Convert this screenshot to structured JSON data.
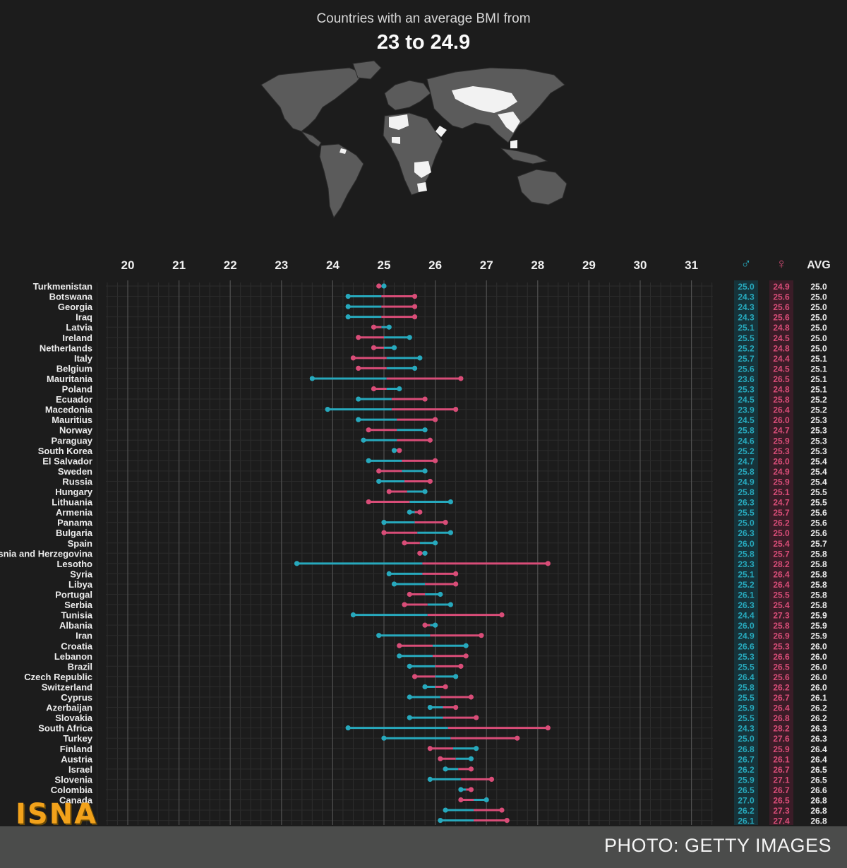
{
  "header": {
    "subtitle": "Countries with an average BMI from",
    "title": "23 to 24.9"
  },
  "colors": {
    "male": "#27a9bd",
    "female": "#d94d78",
    "background": "#1c1c1c",
    "grid": "#3a3a3a",
    "land": "#5b5b5b",
    "highlight": "#f2f2f2"
  },
  "columns": {
    "male_symbol": "♂",
    "female_symbol": "♀",
    "avg_label": "AVG"
  },
  "chart_data": {
    "type": "dumbbell",
    "x_ticks": [
      20,
      21,
      22,
      23,
      24,
      25,
      26,
      27,
      28,
      29,
      30,
      31
    ],
    "xlim": [
      20,
      31
    ],
    "series": [
      {
        "name": "♂",
        "key": "male"
      },
      {
        "name": "♀",
        "key": "female"
      }
    ],
    "rows": [
      {
        "country": "Turkmenistan",
        "male": 25.0,
        "female": 24.9,
        "avg": 25.0
      },
      {
        "country": "Botswana",
        "male": 24.3,
        "female": 25.6,
        "avg": 25.0
      },
      {
        "country": "Georgia",
        "male": 24.3,
        "female": 25.6,
        "avg": 25.0
      },
      {
        "country": "Iraq",
        "male": 24.3,
        "female": 25.6,
        "avg": 25.0
      },
      {
        "country": "Latvia",
        "male": 25.1,
        "female": 24.8,
        "avg": 25.0
      },
      {
        "country": "Ireland",
        "male": 25.5,
        "female": 24.5,
        "avg": 25.0
      },
      {
        "country": "Netherlands",
        "male": 25.2,
        "female": 24.8,
        "avg": 25.0
      },
      {
        "country": "Italy",
        "male": 25.7,
        "female": 24.4,
        "avg": 25.1
      },
      {
        "country": "Belgium",
        "male": 25.6,
        "female": 24.5,
        "avg": 25.1
      },
      {
        "country": "Mauritania",
        "male": 23.6,
        "female": 26.5,
        "avg": 25.1
      },
      {
        "country": "Poland",
        "male": 25.3,
        "female": 24.8,
        "avg": 25.1
      },
      {
        "country": "Ecuador",
        "male": 24.5,
        "female": 25.8,
        "avg": 25.2
      },
      {
        "country": "Macedonia",
        "male": 23.9,
        "female": 26.4,
        "avg": 25.2
      },
      {
        "country": "Mauritius",
        "male": 24.5,
        "female": 26.0,
        "avg": 25.3
      },
      {
        "country": "Norway",
        "male": 25.8,
        "female": 24.7,
        "avg": 25.3
      },
      {
        "country": "Paraguay",
        "male": 24.6,
        "female": 25.9,
        "avg": 25.3
      },
      {
        "country": "South Korea",
        "male": 25.2,
        "female": 25.3,
        "avg": 25.3
      },
      {
        "country": "El Salvador",
        "male": 24.7,
        "female": 26.0,
        "avg": 25.4
      },
      {
        "country": "Sweden",
        "male": 25.8,
        "female": 24.9,
        "avg": 25.4
      },
      {
        "country": "Russia",
        "male": 24.9,
        "female": 25.9,
        "avg": 25.4
      },
      {
        "country": "Hungary",
        "male": 25.8,
        "female": 25.1,
        "avg": 25.5
      },
      {
        "country": "Lithuania",
        "male": 26.3,
        "female": 24.7,
        "avg": 25.5
      },
      {
        "country": "Armenia",
        "male": 25.5,
        "female": 25.7,
        "avg": 25.6
      },
      {
        "country": "Panama",
        "male": 25.0,
        "female": 26.2,
        "avg": 25.6
      },
      {
        "country": "Bulgaria",
        "male": 26.3,
        "female": 25.0,
        "avg": 25.6
      },
      {
        "country": "Spain",
        "male": 26.0,
        "female": 25.4,
        "avg": 25.7
      },
      {
        "country": "Bosnia and Herzegovina",
        "male": 25.8,
        "female": 25.7,
        "avg": 25.8
      },
      {
        "country": "Lesotho",
        "male": 23.3,
        "female": 28.2,
        "avg": 25.8
      },
      {
        "country": "Syria",
        "male": 25.1,
        "female": 26.4,
        "avg": 25.8
      },
      {
        "country": "Libya",
        "male": 25.2,
        "female": 26.4,
        "avg": 25.8
      },
      {
        "country": "Portugal",
        "male": 26.1,
        "female": 25.5,
        "avg": 25.8
      },
      {
        "country": "Serbia",
        "male": 26.3,
        "female": 25.4,
        "avg": 25.8
      },
      {
        "country": "Tunisia",
        "male": 24.4,
        "female": 27.3,
        "avg": 25.9
      },
      {
        "country": "Albania",
        "male": 26.0,
        "female": 25.8,
        "avg": 25.9
      },
      {
        "country": "Iran",
        "male": 24.9,
        "female": 26.9,
        "avg": 25.9
      },
      {
        "country": "Croatia",
        "male": 26.6,
        "female": 25.3,
        "avg": 26.0
      },
      {
        "country": "Lebanon",
        "male": 25.3,
        "female": 26.6,
        "avg": 26.0
      },
      {
        "country": "Brazil",
        "male": 25.5,
        "female": 26.5,
        "avg": 26.0
      },
      {
        "country": "Czech Republic",
        "male": 26.4,
        "female": 25.6,
        "avg": 26.0
      },
      {
        "country": "Switzerland",
        "male": 25.8,
        "female": 26.2,
        "avg": 26.0
      },
      {
        "country": "Cyprus",
        "male": 25.5,
        "female": 26.7,
        "avg": 26.1
      },
      {
        "country": "Azerbaijan",
        "male": 25.9,
        "female": 26.4,
        "avg": 26.2
      },
      {
        "country": "Slovakia",
        "male": 25.5,
        "female": 26.8,
        "avg": 26.2
      },
      {
        "country": "South Africa",
        "male": 24.3,
        "female": 28.2,
        "avg": 26.3
      },
      {
        "country": "Turkey",
        "male": 25.0,
        "female": 27.6,
        "avg": 26.3
      },
      {
        "country": "Finland",
        "male": 26.8,
        "female": 25.9,
        "avg": 26.4
      },
      {
        "country": "Austria",
        "male": 26.7,
        "female": 26.1,
        "avg": 26.4
      },
      {
        "country": "Israel",
        "male": 26.2,
        "female": 26.7,
        "avg": 26.5
      },
      {
        "country": "Slovenia",
        "male": 25.9,
        "female": 27.1,
        "avg": 26.5
      },
      {
        "country": "Colombia",
        "male": 26.5,
        "female": 26.7,
        "avg": 26.6
      },
      {
        "country": "Canada",
        "male": 27.0,
        "female": 26.5,
        "avg": 26.8
      },
      {
        "country": "",
        "male": 26.2,
        "female": 27.3,
        "avg": 26.8
      },
      {
        "country": "",
        "male": 26.1,
        "female": 27.4,
        "avg": 26.8
      }
    ]
  },
  "footer": {
    "credit": "PHOTO: GETTY IMAGES",
    "logo": "ISNA"
  }
}
